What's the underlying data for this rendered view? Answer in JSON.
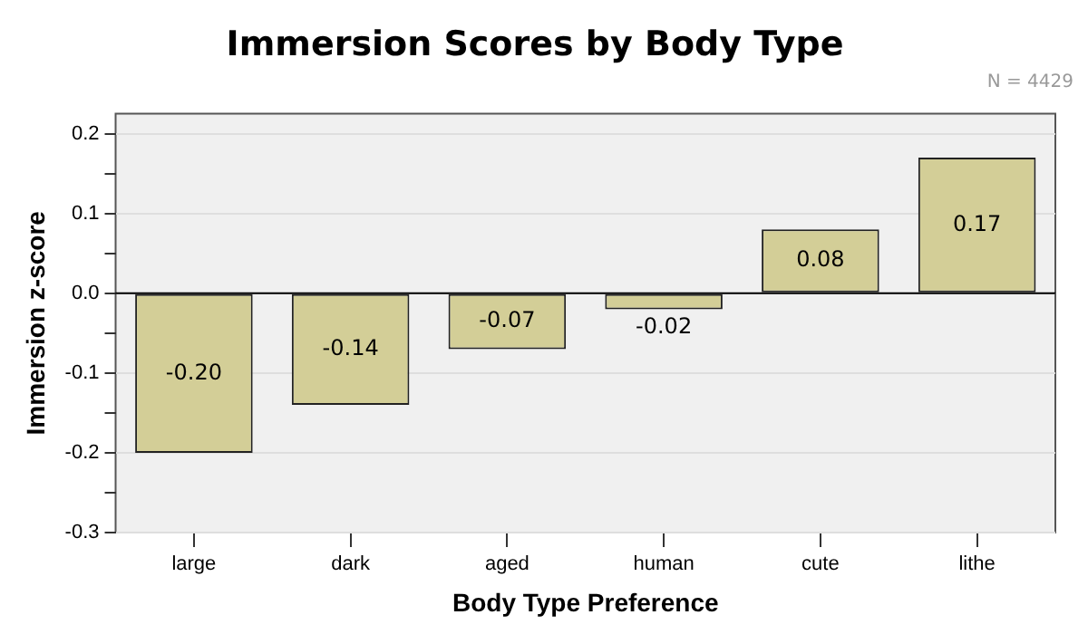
{
  "chart_data": {
    "type": "bar",
    "title": "Immersion Scores by Body Type",
    "xlabel": "Body Type Preference",
    "ylabel": "Immersion z-score",
    "annotations": [
      "N = 4429"
    ],
    "categories": [
      "large",
      "dark",
      "aged",
      "human",
      "cute",
      "lithe"
    ],
    "values": [
      -0.2,
      -0.14,
      -0.07,
      -0.02,
      0.08,
      0.17
    ],
    "value_labels": [
      "-0.20",
      "-0.14",
      "-0.07",
      "-0.02",
      "0.08",
      "0.17"
    ],
    "color": "#d3ce97",
    "ylim": [
      -0.3,
      0.225
    ],
    "yticks": [
      -0.3,
      {
        "value": -0.25,
        "label": null
      },
      -0.2,
      {
        "value": -0.15,
        "label": null
      },
      -0.1,
      {
        "value": -0.05,
        "label": null
      },
      {
        "value": 0,
        "label": "0.0"
      },
      {
        "value": 0.05,
        "label": null
      },
      0.1,
      {
        "value": 0.15,
        "label": null
      },
      0.2
    ],
    "ref_lines": [
      {
        "axis": "y",
        "value": 0,
        "color": "#000000"
      }
    ],
    "grid": "y",
    "legend": false
  }
}
